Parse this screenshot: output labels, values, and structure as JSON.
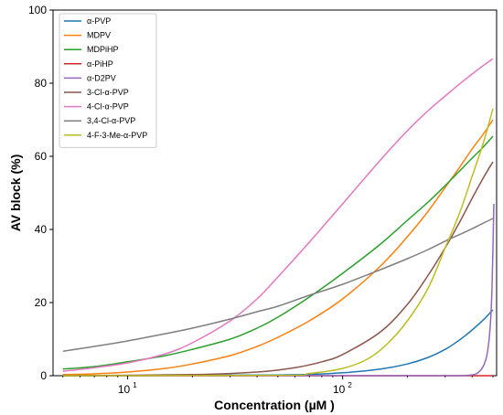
{
  "chart_data": {
    "type": "line",
    "title": "",
    "xlabel": "Concentration (µM )",
    "ylabel": "AV block (%)",
    "xscale": "log",
    "xlim": [
      4.5,
      520
    ],
    "ylim": [
      0,
      100
    ],
    "xticks": [
      {
        "value": 10,
        "base": "10",
        "exp": "1"
      },
      {
        "value": 100,
        "base": "10",
        "exp": "2"
      }
    ],
    "yticks": [
      0,
      20,
      40,
      60,
      80,
      100
    ],
    "grid": false,
    "legend_position": "top-left",
    "series": [
      {
        "name": "α-PVP",
        "color": "#1f77b4",
        "x": [
          5,
          50,
          100,
          150,
          200,
          250,
          300,
          350,
          400,
          450,
          500
        ],
        "y": [
          0.0,
          0.2,
          0.8,
          1.8,
          3.2,
          5.0,
          7.2,
          9.8,
          12.5,
          15.2,
          18
        ]
      },
      {
        "name": "MDPV",
        "color": "#ff7f0e",
        "x": [
          5,
          7,
          10,
          15,
          20,
          30,
          40,
          50,
          70,
          100,
          150,
          200,
          250,
          300,
          350,
          400,
          450,
          500
        ],
        "y": [
          0.3,
          0.5,
          1.0,
          2.0,
          3.2,
          5.5,
          8.0,
          10.5,
          15.0,
          21.0,
          30.0,
          38.0,
          45.0,
          51.5,
          57.0,
          62.0,
          66.0,
          70.0
        ]
      },
      {
        "name": "MDPiHP",
        "color": "#2ca02c",
        "x": [
          5,
          7,
          10,
          15,
          20,
          30,
          40,
          50,
          70,
          100,
          150,
          200,
          250,
          300,
          350,
          400,
          450,
          500
        ],
        "y": [
          1.8,
          2.5,
          3.8,
          5.5,
          7.2,
          10.0,
          13.0,
          16.0,
          21.5,
          28.0,
          36.0,
          42.5,
          47.5,
          52.0,
          56.0,
          59.5,
          62.5,
          65.5
        ]
      },
      {
        "name": "α-PiHP",
        "color": "#d62728",
        "x": [
          5,
          10,
          50,
          100,
          300,
          500
        ],
        "y": [
          0,
          0,
          0,
          0,
          0,
          0
        ]
      },
      {
        "name": "α-D2PV",
        "color": "#9467bd",
        "x": [
          5,
          100,
          300,
          380,
          420,
          450,
          470,
          485,
          495,
          505
        ],
        "y": [
          0,
          0,
          0,
          0.1,
          0.6,
          2.5,
          6,
          13,
          24,
          47
        ]
      },
      {
        "name": "3-Cl-α-PVP",
        "color": "#8c564b",
        "x": [
          5,
          20,
          40,
          60,
          80,
          100,
          150,
          200,
          250,
          300,
          350,
          400,
          450,
          500
        ],
        "y": [
          0.0,
          0.3,
          1.0,
          2.2,
          3.8,
          5.8,
          12.0,
          19.5,
          27.5,
          35.0,
          42.0,
          48.5,
          54.0,
          58.5
        ]
      },
      {
        "name": "4-Cl-α-PVP",
        "color": "#e377c2",
        "x": [
          5,
          7,
          10,
          15,
          20,
          30,
          40,
          50,
          70,
          100,
          150,
          200,
          250,
          300,
          350,
          400,
          450,
          500
        ],
        "y": [
          1.2,
          2.2,
          3.5,
          6.0,
          9.0,
          15.0,
          21.0,
          27.0,
          36.5,
          47.0,
          59.0,
          67.0,
          72.5,
          76.5,
          79.8,
          82.5,
          84.8,
          86.7
        ]
      },
      {
        "name": "3,4-Cl-α-PVP",
        "color": "#7f7f7f",
        "x": [
          5,
          7,
          10,
          15,
          20,
          30,
          40,
          50,
          70,
          100,
          150,
          200,
          250,
          300,
          350,
          400,
          450,
          500
        ],
        "y": [
          6.7,
          8.0,
          9.5,
          11.5,
          13.0,
          15.5,
          17.5,
          19.0,
          22.0,
          25.0,
          29.0,
          32.0,
          34.5,
          36.8,
          38.6,
          40.2,
          41.7,
          43.0
        ]
      },
      {
        "name": "4-F-3-Me-α-PVP",
        "color": "#bcbd22",
        "x": [
          5,
          50,
          70,
          100,
          130,
          160,
          200,
          250,
          300,
          350,
          400,
          450,
          500
        ],
        "y": [
          0.0,
          0.1,
          0.6,
          2.0,
          4.5,
          8.5,
          15.0,
          24.0,
          35.0,
          44.5,
          54.5,
          63.5,
          73.0
        ]
      }
    ]
  }
}
